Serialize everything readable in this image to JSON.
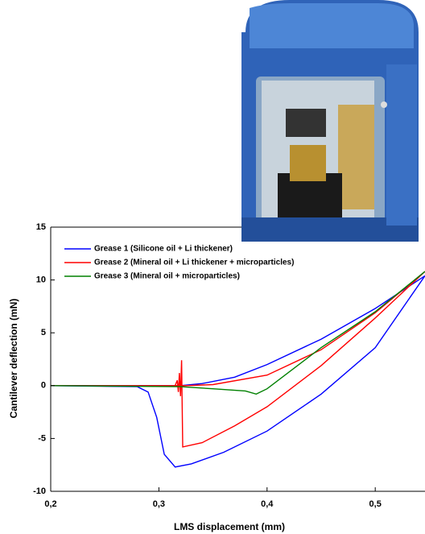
{
  "chart_data": {
    "type": "line",
    "xlabel": "LMS displacement (mm)",
    "ylabel": "Cantilever deflection (mN)",
    "xlim": [
      0.2,
      0.546
    ],
    "ylim": [
      -10,
      15
    ],
    "xticks": [
      {
        "value": 0.2,
        "label": "0,2"
      },
      {
        "value": 0.3,
        "label": "0,3"
      },
      {
        "value": 0.4,
        "label": "0,4"
      },
      {
        "value": 0.5,
        "label": "0,5"
      }
    ],
    "yticks": [
      -10,
      -5,
      0,
      5,
      10,
      15
    ],
    "legend": "upper left",
    "series": [
      {
        "name": "Grease 1 (Silicone oil + Li thickener)",
        "color": "#0000ff",
        "x": [
          0.2,
          0.32,
          0.34,
          0.37,
          0.4,
          0.45,
          0.5,
          0.546,
          0.5,
          0.45,
          0.4,
          0.36,
          0.33,
          0.315,
          0.305,
          0.298,
          0.29,
          0.28,
          0.2
        ],
        "values": [
          0,
          0,
          0.2,
          0.8,
          2.0,
          4.4,
          7.3,
          10.4,
          3.6,
          -0.8,
          -4.3,
          -6.3,
          -7.4,
          -7.7,
          -6.5,
          -3.0,
          -0.6,
          -0.1,
          0
        ]
      },
      {
        "name": "Grease 2 (Mineral oil + Li thickener + microparticles)",
        "color": "#ff0000",
        "x": [
          0.2,
          0.325,
          0.35,
          0.4,
          0.45,
          0.5,
          0.546,
          0.5,
          0.45,
          0.4,
          0.37,
          0.34,
          0.322,
          0.321,
          0.32,
          0.319,
          0.318,
          0.317,
          0.315,
          0.2
        ],
        "values": [
          0,
          0,
          0.1,
          1.0,
          3.4,
          6.9,
          10.8,
          6.4,
          1.9,
          -2.0,
          -3.8,
          -5.4,
          -5.8,
          2.4,
          -1.0,
          1.2,
          -0.6,
          0.5,
          0,
          0
        ]
      },
      {
        "name": "Grease 3 (Mineral oil + microparticles)",
        "color": "#008000",
        "x": [
          0.2,
          0.32,
          0.35,
          0.38,
          0.39,
          0.4,
          0.45,
          0.5,
          0.546
        ],
        "values": [
          0,
          -0.1,
          -0.3,
          -0.5,
          -0.8,
          -0.3,
          3.6,
          7.0,
          10.8
        ]
      }
    ]
  }
}
